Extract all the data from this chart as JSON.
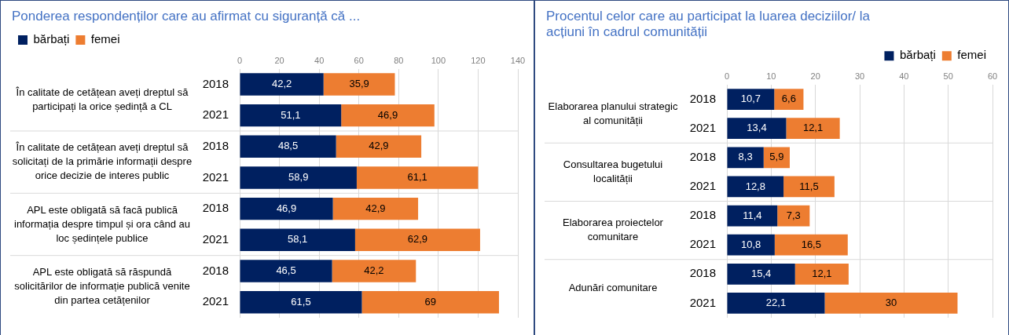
{
  "chart_data": [
    {
      "type": "bar",
      "orientation": "horizontal",
      "stacked": true,
      "title": "Ponderea respondenților care au afirmat cu siguranță că ...",
      "categories": [
        "2018",
        "2021",
        "2018",
        "2021",
        "2018",
        "2021",
        "2018",
        "2021"
      ],
      "series": [
        {
          "name": "bărbați",
          "color": "#002060",
          "values": [
            42.2,
            51.1,
            48.5,
            58.9,
            46.9,
            58.1,
            46.5,
            61.5
          ],
          "value_labels": [
            "42,2",
            "51,1",
            "48,5",
            "58,9",
            "46,9",
            "58,1",
            "46,5",
            "61,5"
          ]
        },
        {
          "name": "femei",
          "color": "#ed7d31",
          "values": [
            35.9,
            46.9,
            42.9,
            61.1,
            42.9,
            62.9,
            42.2,
            69
          ],
          "value_labels": [
            "35,9",
            "46,9",
            "42,9",
            "61,1",
            "42,9",
            "62,9",
            "42,2",
            "69"
          ]
        }
      ],
      "xlim": [
        0,
        140
      ],
      "xticks": [
        0,
        20,
        40,
        60,
        80,
        100,
        120,
        140
      ],
      "grid": "x",
      "legend": "top left",
      "annotations": [
        "În calitate de cetățean aveți dreptul să participați la orice ședință a CL",
        "În calitate de cetățean aveți dreptul să solicitați de la primărie informații despre orice decizie de interes public",
        "APL este obligată să facă publică informația despre timpul și ora când au loc ședințele publice",
        "APL este obligată să răspundă solicitărilor de informație publică venite din partea cetățenilor"
      ]
    },
    {
      "type": "bar",
      "orientation": "horizontal",
      "stacked": true,
      "title": "Procentul celor care au participat la luarea deciziilor/ la acțiuni în cadrul comunității",
      "categories": [
        "2018",
        "2021",
        "2018",
        "2021",
        "2018",
        "2021",
        "2018",
        "2021"
      ],
      "series": [
        {
          "name": "bărbați",
          "color": "#002060",
          "values": [
            10.7,
            13.4,
            8.3,
            12.8,
            11.4,
            10.8,
            15.4,
            22.1
          ],
          "value_labels": [
            "10,7",
            "13,4",
            "8,3",
            "12,8",
            "11,4",
            "10,8",
            "15,4",
            "22,1"
          ]
        },
        {
          "name": "femei",
          "color": "#ed7d31",
          "values": [
            6.6,
            12.1,
            5.9,
            11.5,
            7.3,
            16.5,
            12.1,
            30
          ],
          "value_labels": [
            "6,6",
            "12,1",
            "5,9",
            "11,5",
            "7,3",
            "16,5",
            "12,1",
            "30"
          ]
        }
      ],
      "xlim": [
        0,
        60
      ],
      "xticks": [
        0,
        10,
        20,
        30,
        40,
        50,
        60
      ],
      "grid": "x",
      "legend": "top right",
      "annotations": [
        "Elaborarea planului strategic al comunității",
        "Consultarea bugetului localității",
        "Elaborarea proiectelor comunitare",
        "Adunări comunitare"
      ]
    }
  ]
}
